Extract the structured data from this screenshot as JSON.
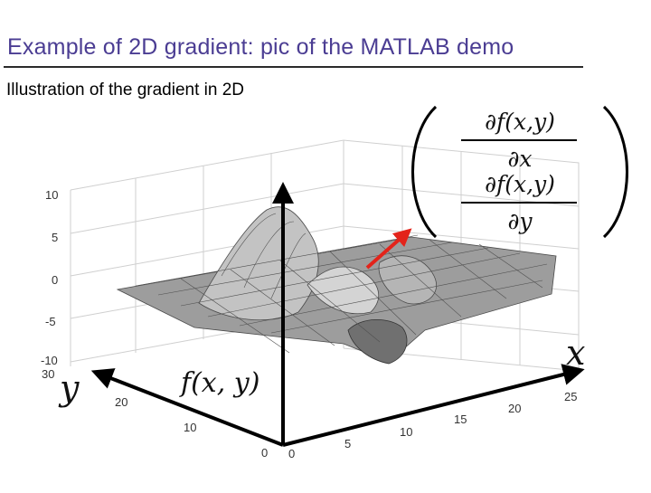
{
  "slide": {
    "title": "Example of 2D gradient: pic of the MATLAB demo",
    "subtitle": "Illustration of the gradient in 2D",
    "title_color": "#4b3d93"
  },
  "figure": {
    "z_ticks": [
      "10",
      "5",
      "0",
      "-5",
      "-10"
    ],
    "y_ticks": [
      "30",
      "20",
      "10",
      "0"
    ],
    "x_ticks": [
      "0",
      "5",
      "10",
      "15",
      "20",
      "25"
    ],
    "x_axis_label": "x",
    "y_axis_label": "y",
    "z_axis_label": "f(x, y)",
    "gradient": {
      "x_component_numerator": "∂f(x,y)",
      "x_component_denominator": "∂x",
      "y_component_numerator": "∂f(x,y)",
      "y_component_denominator": "∂y"
    },
    "gradient_arrow_color": "#e3231a",
    "surface_color": "#9a9a9a"
  }
}
